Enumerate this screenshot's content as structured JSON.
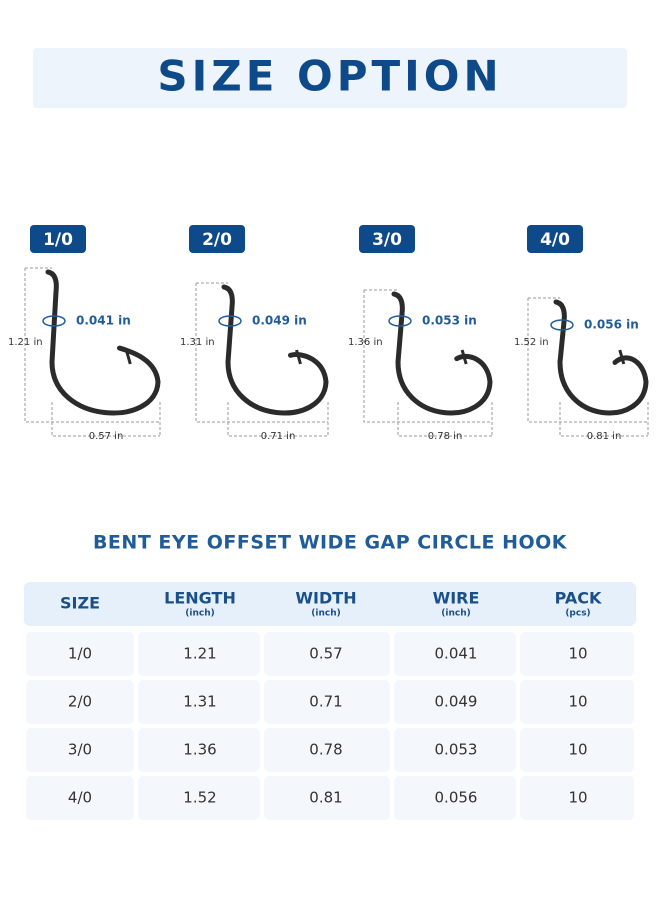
{
  "header": {
    "title": "SIZE OPTION"
  },
  "hooks": [
    {
      "size": "1/0",
      "wire": "0.041 in",
      "length": "1.21 in",
      "width": "0.57 in"
    },
    {
      "size": "2/0",
      "wire": "0.049 in",
      "length": "1.31 in",
      "width": "0.71 in"
    },
    {
      "size": "3/0",
      "wire": "0.053 in",
      "length": "1.36 in",
      "width": "0.78 in"
    },
    {
      "size": "4/0",
      "wire": "0.056 in",
      "length": "1.52 in",
      "width": "0.81 in"
    }
  ],
  "subtitle": "BENT EYE OFFSET WIDE GAP CIRCLE HOOK",
  "table": {
    "columns": [
      {
        "label": "SIZE"
      },
      {
        "label": "LENGTH",
        "unit": "(inch)"
      },
      {
        "label": "WIDTH",
        "unit": "(inch)"
      },
      {
        "label": "WIRE",
        "unit": "(inch)"
      },
      {
        "label": "PACK",
        "unit": "(pcs)"
      }
    ],
    "rows": [
      [
        "1/0",
        "1.21",
        "0.57",
        "0.041",
        "10"
      ],
      [
        "2/0",
        "1.31",
        "0.71",
        "0.049",
        "10"
      ],
      [
        "3/0",
        "1.36",
        "0.78",
        "0.053",
        "10"
      ],
      [
        "4/0",
        "1.52",
        "0.81",
        "0.056",
        "10"
      ]
    ]
  }
}
